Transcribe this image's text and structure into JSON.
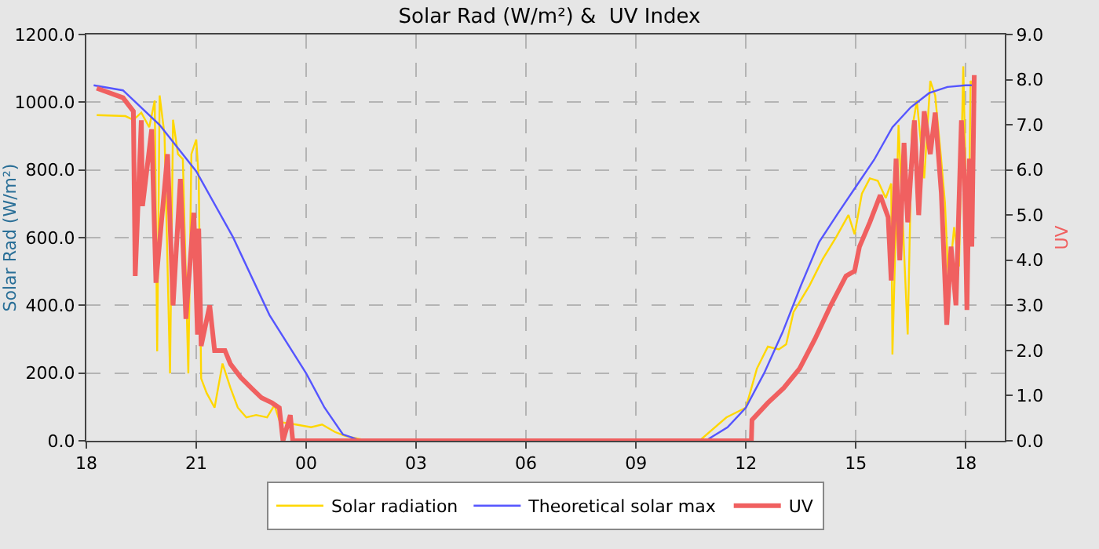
{
  "chart_data": {
    "type": "line",
    "title": "Solar Rad (W/m²) &  UV Index",
    "ylabel": "Solar Rad (W/m²)",
    "y2label": "UV",
    "xlim": [
      "--01-01T18:00",
      "--01-02T19:04"
    ],
    "xticks": [
      {
        "value": "--01-01T18:00",
        "label": "18"
      },
      {
        "value": "--01-01T21:00",
        "label": "21"
      },
      {
        "value": "--01-02T00:00",
        "label": "00"
      },
      {
        "value": "--01-02T03:00",
        "label": "03"
      },
      {
        "value": "--01-02T06:00",
        "label": "06"
      },
      {
        "value": "--01-02T09:00",
        "label": "09"
      },
      {
        "value": "--01-02T12:00",
        "label": "12"
      },
      {
        "value": "--01-02T15:00",
        "label": "15"
      },
      {
        "value": "--01-02T18:00",
        "label": "18"
      }
    ],
    "ylim": [
      0,
      1200
    ],
    "yticks": [
      {
        "value": 0,
        "label": "0.0"
      },
      {
        "value": 200,
        "label": "200.0"
      },
      {
        "value": 400,
        "label": "400.0"
      },
      {
        "value": 600,
        "label": "600.0"
      },
      {
        "value": 800,
        "label": "800.0"
      },
      {
        "value": 1000,
        "label": "1000.0"
      },
      {
        "value": 1200,
        "label": "1200.0"
      }
    ],
    "y2lim": [
      0,
      9
    ],
    "y2ticks": [
      {
        "value": 0,
        "label": "0.0"
      },
      {
        "value": 1,
        "label": "1.0"
      },
      {
        "value": 2,
        "label": "2.0"
      },
      {
        "value": 3,
        "label": "3.0"
      },
      {
        "value": 4,
        "label": "4.0"
      },
      {
        "value": 5,
        "label": "5.0"
      },
      {
        "value": 6,
        "label": "6.0"
      },
      {
        "value": 7,
        "label": "7.0"
      },
      {
        "value": 8,
        "label": "8.0"
      },
      {
        "value": 9,
        "label": "9.0"
      }
    ],
    "grid": true,
    "legend": "bottom",
    "marker": "none",
    "line_style": "solid",
    "series": [
      {
        "name": "Solar radiation",
        "color": "#ffd700",
        "x": [
          "--01-01T18:17",
          "--01-01T19:04",
          "--01-01T19:17",
          "--01-01T19:30",
          "--01-01T19:43",
          "--01-01T19:52",
          "--01-01T19:56",
          "--01-01T20:00",
          "--01-01T20:08",
          "--01-01T20:17",
          "--01-01T20:22",
          "--01-01T20:30",
          "--01-01T20:38",
          "--01-01T20:47",
          "--01-01T20:52",
          "--01-01T21:00",
          "--01-01T21:04",
          "--01-01T21:08",
          "--01-01T21:17",
          "--01-01T21:30",
          "--01-01T21:43",
          "--01-01T21:56",
          "--01-01T22:08",
          "--01-01T22:22",
          "--01-01T22:38",
          "--01-01T22:56",
          "--01-01T23:08",
          "--01-01T23:17",
          "--01-01T23:43",
          "--01-02T00:08",
          "--01-02T00:26",
          "--01-02T00:47",
          "--01-02T01:04",
          "--01-02T01:30",
          "--01-02T10:44",
          "--01-02T11:28",
          "--01-02T12:00",
          "--01-02T12:18",
          "--01-02T12:36",
          "--01-02T12:54",
          "--01-02T13:06",
          "--01-02T13:18",
          "--01-02T13:44",
          "--01-02T14:06",
          "--01-02T14:28",
          "--01-02T14:48",
          "--01-02T14:58",
          "--01-02T15:10",
          "--01-02T15:23",
          "--01-02T15:36",
          "--01-02T15:49",
          "--01-02T15:58",
          "--01-02T16:00",
          "--01-02T16:10",
          "--01-02T16:19",
          "--01-02T16:25",
          "--01-02T16:32",
          "--01-02T16:40",
          "--01-02T16:52",
          "--01-02T17:02",
          "--01-02T17:10",
          "--01-02T17:19",
          "--01-02T17:26",
          "--01-02T17:32",
          "--01-02T17:41",
          "--01-02T17:49",
          "--01-02T17:56",
          "--01-02T18:00",
          "--01-02T18:04",
          "--01-02T18:08",
          "--01-02T18:14"
        ],
        "values": [
          962,
          959,
          948,
          969,
          926,
          1005,
          264,
          1020,
          904,
          199,
          948,
          847,
          832,
          199,
          847,
          890,
          775,
          184,
          141,
          98,
          228,
          156,
          98,
          69,
          76,
          69,
          105,
          55,
          48,
          40,
          48,
          26,
          14,
          4,
          0,
          69,
          98,
          213,
          278,
          270,
          285,
          380,
          458,
          537,
          602,
          667,
          610,
          730,
          775,
          768,
          717,
          760,
          255,
          933,
          560,
          314,
          919,
          1005,
          775,
          1063,
          1020,
          847,
          703,
          458,
          631,
          515,
          1106,
          775,
          487,
          1063,
          1048
        ]
      },
      {
        "name": "Theoretical solar max",
        "color": "#5555ff",
        "x": [
          "--01-01T18:12",
          "--01-01T19:00",
          "--01-01T20:00",
          "--01-01T21:00",
          "--01-01T22:00",
          "--01-01T23:00",
          "--01-02T00:00",
          "--01-02T00:30",
          "--01-02T01:00",
          "--01-02T01:30",
          "--01-02T10:54",
          "--01-02T11:30",
          "--01-02T12:00",
          "--01-02T12:30",
          "--01-02T13:00",
          "--01-02T13:30",
          "--01-02T14:00",
          "--01-02T14:30",
          "--01-02T15:00",
          "--01-02T15:30",
          "--01-02T16:00",
          "--01-02T16:30",
          "--01-02T17:00",
          "--01-02T17:30",
          "--01-02T18:00",
          "--01-02T18:12"
        ],
        "values": [
          1050,
          1035,
          933,
          796,
          602,
          371,
          199,
          98,
          19,
          0,
          0,
          40,
          98,
          200,
          320,
          458,
          587,
          670,
          750,
          830,
          926,
          985,
          1027,
          1045,
          1050,
          1050
        ]
      },
      {
        "name": "UV",
        "color": "#f06060",
        "axis": "y2",
        "x": [
          "--01-01T18:17",
          "--01-01T19:00",
          "--01-01T19:17",
          "--01-01T19:20",
          "--01-01T19:30",
          "--01-01T19:32",
          "--01-01T19:47",
          "--01-01T19:54",
          "--01-01T20:13",
          "--01-01T20:22",
          "--01-01T20:34",
          "--01-01T20:43",
          "--01-01T20:56",
          "--01-01T21:02",
          "--01-01T21:04",
          "--01-01T21:08",
          "--01-01T21:22",
          "--01-01T21:30",
          "--01-01T21:47",
          "--01-01T21:56",
          "--01-01T22:13",
          "--01-01T22:30",
          "--01-01T22:47",
          "--01-01T23:04",
          "--01-01T23:16",
          "--01-01T23:22",
          "--01-01T23:34",
          "--01-01T23:38",
          "--01-02T12:09",
          "--01-02T12:10",
          "--01-02T12:36",
          "--01-02T13:02",
          "--01-02T13:28",
          "--01-02T13:53",
          "--01-02T14:19",
          "--01-02T14:44",
          "--01-02T14:58",
          "--01-02T15:06",
          "--01-02T15:23",
          "--01-02T15:40",
          "--01-02T15:53",
          "--01-02T15:58",
          "--01-02T16:06",
          "--01-02T16:12",
          "--01-02T16:19",
          "--01-02T16:25",
          "--01-02T16:36",
          "--01-02T16:43",
          "--01-02T16:52",
          "--01-02T17:02",
          "--01-02T17:10",
          "--01-02T17:20",
          "--01-02T17:29",
          "--01-02T17:36",
          "--01-02T17:44",
          "--01-02T17:53",
          "--01-02T17:58",
          "--01-02T18:02",
          "--01-02T18:06",
          "--01-02T18:10",
          "--01-02T18:14"
        ],
        "values": [
          7.81,
          7.6,
          7.3,
          3.65,
          7.1,
          5.2,
          6.9,
          3.5,
          6.35,
          3.0,
          5.8,
          2.7,
          5.05,
          2.35,
          4.7,
          2.1,
          3.0,
          2.0,
          2.0,
          1.7,
          1.4,
          1.17,
          0.95,
          0.84,
          0.73,
          0,
          0.57,
          0,
          0,
          0.46,
          0.84,
          1.17,
          1.6,
          2.25,
          3.0,
          3.65,
          3.76,
          4.3,
          4.84,
          5.44,
          4.95,
          3.55,
          6.25,
          4.0,
          6.6,
          4.84,
          7.1,
          5.0,
          7.3,
          6.35,
          7.27,
          5.5,
          2.57,
          4.3,
          3.0,
          7.1,
          5.8,
          2.9,
          6.25,
          4.3,
          8.1
        ]
      }
    ]
  }
}
